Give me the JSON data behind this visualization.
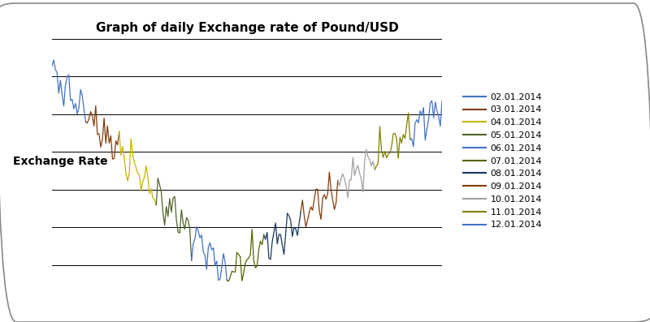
{
  "title": "Graph of daily Exchange rate of Pound/USD",
  "ylabel": "Exchange Rate",
  "background_color": "#ffffff",
  "legend_labels": [
    "02.01.2014",
    "03.01.2014",
    "04.01.2014",
    "05.01.2014",
    "06.01.2014",
    "07.01.2014",
    "08.01.2014",
    "09.01.2014",
    "10.01.2014",
    "11.01.2014",
    "12.01.2014"
  ],
  "colors": [
    "#4472C4",
    "#843C0C",
    "#C8B400",
    "#4F6228",
    "#4472C4",
    "#526400",
    "#17375E",
    "#843C0C",
    "#A0A0A0",
    "#808000",
    "#4472C4"
  ],
  "month_sizes": [
    20,
    20,
    22,
    21,
    21,
    22,
    22,
    22,
    22,
    21,
    20
  ],
  "figsize": [
    8.0,
    3.97
  ],
  "dpi": 100,
  "title_fontsize": 11,
  "ylabel_fontsize": 10,
  "legend_fontsize": 8,
  "linewidth": 0.9,
  "grid_linewidth": 0.7,
  "n_gridlines": 8
}
